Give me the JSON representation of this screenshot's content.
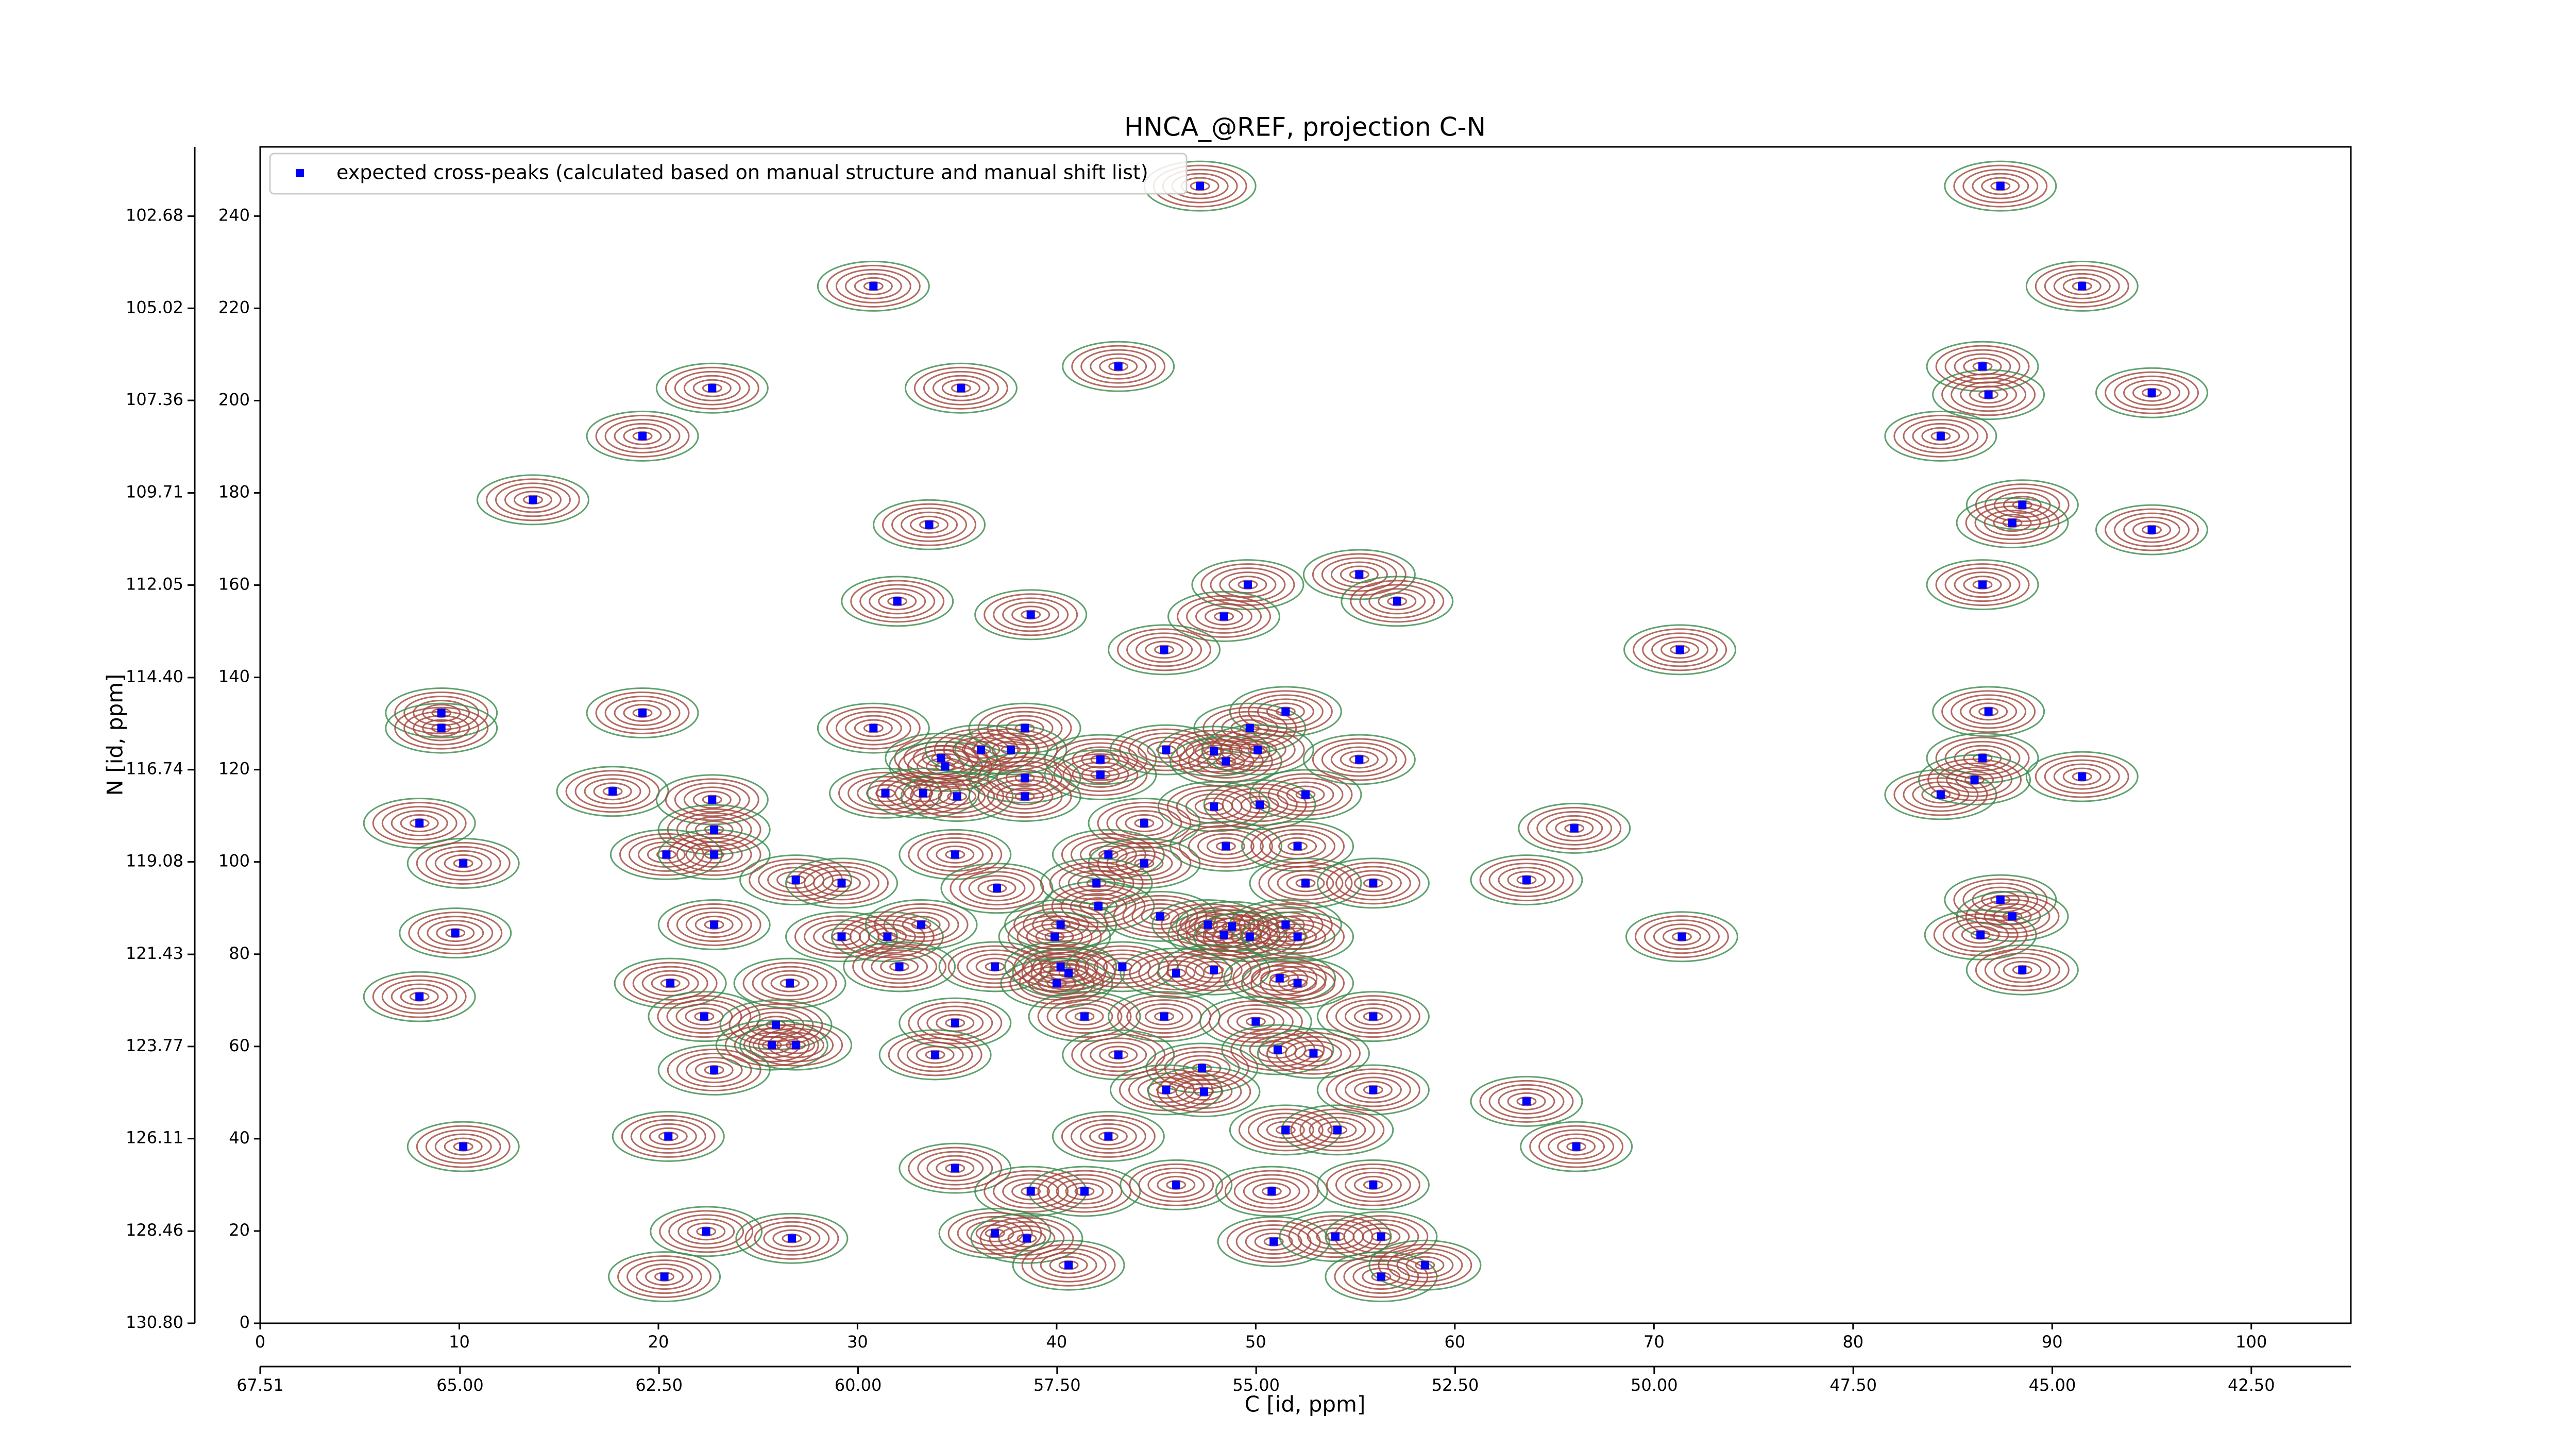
{
  "chart_data": {
    "type": "scatter",
    "title": "HNCA_@REF, projection C-N",
    "x_label": "C [id, ppm]",
    "y_label": "N [id, ppm]",
    "xlim": [
      0,
      105
    ],
    "ylim": [
      0,
      255
    ],
    "xticks": [
      0,
      10,
      20,
      30,
      40,
      50,
      60,
      70,
      80,
      90,
      100
    ],
    "yticks": [
      0,
      20,
      40,
      60,
      80,
      100,
      120,
      140,
      160,
      180,
      200,
      220,
      240
    ],
    "x2lim": [
      67.51,
      41.25
    ],
    "x2ticks": [
      67.51,
      {
        "value": 65,
        "label": "65.00"
      },
      {
        "value": 62.5,
        "label": "62.50"
      },
      {
        "value": 60,
        "label": "60.00"
      },
      {
        "value": 57.5,
        "label": "57.50"
      },
      {
        "value": 55,
        "label": "55.00"
      },
      {
        "value": 52.5,
        "label": "52.50"
      },
      {
        "value": 50,
        "label": "50.00"
      },
      {
        "value": 47.5,
        "label": "47.50"
      },
      {
        "value": 45,
        "label": "45.00"
      },
      {
        "value": 42.5,
        "label": "42.50"
      }
    ],
    "y2lim": [
      130.8,
      100.92
    ],
    "y2ticks": [
      {
        "value": 130.8,
        "label": "130.80"
      },
      128.46,
      126.11,
      123.77,
      121.43,
      119.08,
      116.74,
      {
        "value": 114.4,
        "label": "114.40"
      },
      112.05,
      109.71,
      107.36,
      105.02,
      102.68
    ],
    "legend": "upper left",
    "contour_color": "#a0453a",
    "series": [
      {
        "name": "expected cross-peaks (calculated based on manual structure and manual shift list)",
        "color": "#0000ff",
        "x": [
          47.2,
          87.4,
          30.8,
          91.5,
          43.1,
          86.5,
          22.7,
          35.2,
          86.8,
          95.0,
          19.2,
          84.4,
          13.7,
          88.5,
          33.6,
          88.0,
          95.0,
          32.0,
          38.7,
          49.6,
          55.2,
          57.1,
          86.5,
          48.4,
          45.4,
          71.3,
          9.1,
          9.1,
          19.2,
          51.5,
          86.8,
          30.8,
          38.4,
          49.7,
          17.7,
          22.7,
          34.2,
          34.4,
          36.2,
          37.7,
          42.2,
          42.2,
          38.4,
          31.4,
          33.3,
          35.0,
          38.4,
          45.5,
          47.9,
          48.5,
          50.1,
          52.5,
          50.2,
          47.9,
          55.2,
          86.5,
          91.5,
          84.4,
          86.1,
          44.4,
          8.0,
          22.8,
          66.0,
          20.4,
          22.8,
          42.6,
          44.4,
          10.2,
          26.9,
          29.2,
          34.9,
          42.0,
          48.5,
          52.1,
          52.5,
          55.9,
          63.6,
          87.4,
          37.0,
          42.1,
          45.2,
          9.8,
          22.8,
          29.2,
          31.5,
          33.2,
          40.2,
          39.9,
          47.6,
          48.4,
          48.8,
          49.7,
          51.5,
          52.1,
          88.0,
          86.4,
          71.4,
          32.1,
          36.9,
          40.2,
          40.6,
          40.0,
          43.3,
          46.0,
          47.9,
          51.2,
          52.1,
          88.5,
          8.0,
          20.6,
          26.6,
          22.3,
          25.9,
          34.9,
          41.4,
          45.4,
          50.0,
          55.9,
          25.7,
          26.9,
          22.8,
          33.9,
          43.1,
          47.3,
          51.1,
          52.9,
          45.5,
          47.4,
          55.9,
          63.6,
          20.5,
          10.2,
          42.6,
          51.5,
          54.1,
          66.1,
          34.9,
          38.7,
          41.4,
          46.0,
          50.8,
          55.9,
          22.4,
          26.7,
          36.9,
          38.5,
          40.6,
          50.9,
          54.0,
          56.3,
          20.3,
          56.3,
          58.5
        ],
        "y": [
          246.5,
          246.5,
          224.8,
          224.8,
          207.4,
          207.4,
          202.7,
          202.7,
          201.3,
          201.7,
          192.3,
          192.3,
          178.5,
          177.4,
          173.1,
          173.5,
          172.0,
          156.5,
          153.6,
          160.1,
          162.3,
          156.5,
          160.1,
          153.2,
          146.0,
          146.0,
          132.3,
          129.0,
          132.3,
          132.6,
          132.6,
          129.0,
          129.0,
          129.0,
          115.3,
          113.5,
          122.5,
          120.7,
          124.3,
          124.3,
          122.2,
          118.9,
          118.2,
          114.9,
          114.9,
          114.2,
          114.2,
          124.3,
          124.0,
          121.8,
          124.3,
          114.6,
          112.4,
          112.0,
          122.2,
          122.5,
          118.5,
          114.6,
          117.8,
          108.4,
          108.4,
          107.0,
          107.3,
          101.6,
          101.6,
          101.6,
          99.7,
          99.7,
          96.1,
          95.4,
          101.6,
          95.4,
          103.4,
          103.4,
          95.4,
          95.4,
          96.1,
          91.8,
          94.3,
          90.4,
          88.2,
          84.6,
          86.4,
          83.8,
          83.8,
          86.4,
          86.4,
          83.8,
          86.4,
          84.2,
          86.0,
          83.8,
          86.4,
          83.8,
          88.2,
          84.2,
          83.8,
          77.3,
          77.3,
          77.3,
          75.9,
          73.7,
          77.3,
          75.9,
          76.6,
          74.8,
          73.7,
          76.6,
          70.8,
          73.7,
          73.7,
          66.5,
          64.7,
          65.1,
          66.5,
          66.5,
          65.4,
          66.5,
          60.3,
          60.3,
          54.9,
          58.2,
          58.2,
          55.3,
          59.3,
          58.5,
          50.6,
          50.2,
          50.6,
          48.1,
          40.5,
          38.3,
          40.5,
          41.9,
          41.9,
          38.3,
          33.6,
          28.6,
          28.6,
          30.0,
          28.6,
          30.0,
          19.9,
          18.4,
          19.5,
          18.4,
          12.6,
          17.7,
          18.8,
          18.8,
          10.1,
          10.1,
          12.6
        ]
      }
    ]
  }
}
